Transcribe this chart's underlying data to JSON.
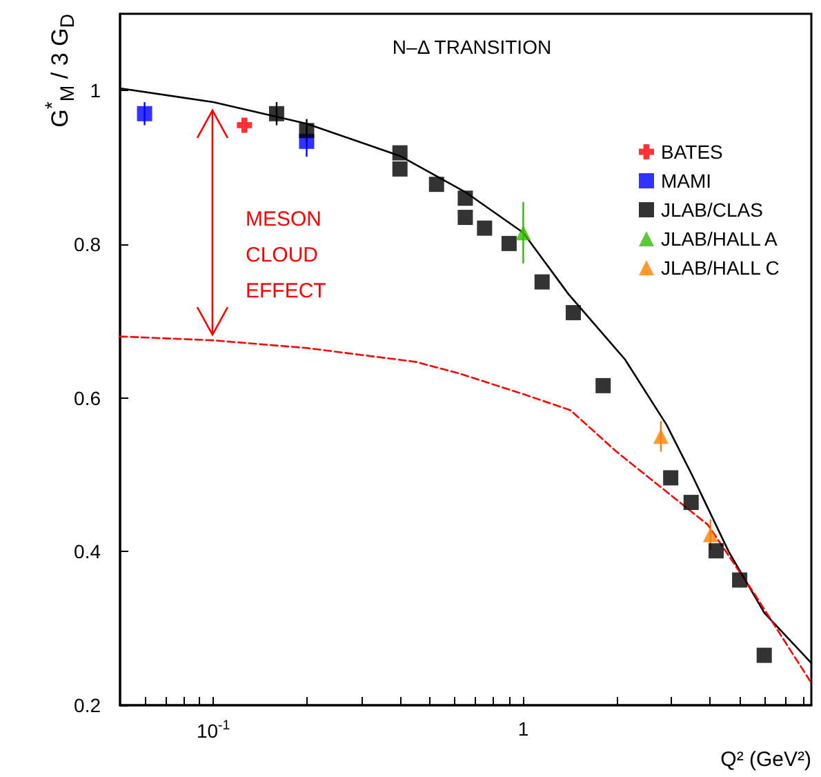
{
  "chart_data": {
    "type": "scatter",
    "title": "N–Δ TRANSITION",
    "xlabel": "Q² (GeV²)",
    "ylabel": "G$^{*}$$_{M}$ / 3 G$_{D}$",
    "annotations": [
      "MESON\nCLOUD\nEFFECT"
    ],
    "log": "x",
    "grid": false,
    "legend": "top right",
    "xlim": [
      0.05,
      8.5
    ],
    "ylim": [
      0.2,
      1.1
    ],
    "xticks": [
      {
        "value": 0.06,
        "label": null
      },
      {
        "value": 0.07,
        "label": null
      },
      {
        "value": 0.08,
        "label": null
      },
      {
        "value": 0.09,
        "label": null
      },
      {
        "value": 0.1,
        "label": "10$^{-1}$"
      },
      {
        "value": 0.2,
        "label": null
      },
      {
        "value": 0.3,
        "label": null
      },
      {
        "value": 0.4,
        "label": null
      },
      {
        "value": 0.5,
        "label": null
      },
      {
        "value": 0.6,
        "label": null
      },
      {
        "value": 0.7,
        "label": null
      },
      {
        "value": 0.8,
        "label": null
      },
      {
        "value": 0.9,
        "label": null
      },
      1,
      {
        "value": 2,
        "label": null
      },
      {
        "value": 3,
        "label": null
      },
      {
        "value": 4,
        "label": null
      },
      {
        "value": 5,
        "label": null
      },
      {
        "value": 6,
        "label": null
      },
      {
        "value": 7,
        "label": null
      },
      {
        "value": 8,
        "label": null
      }
    ],
    "yticks": [
      0.2,
      0.4,
      0.6,
      0.8,
      1
    ],
    "series": [
      {
        "type": "line",
        "color": "#000000",
        "marker": "none",
        "line_style": "solid",
        "x": [
          0.05,
          0.1,
          0.2,
          0.4,
          0.65,
          1,
          1.4,
          2.13,
          2.9,
          3.5,
          4.6,
          6,
          8.5
        ],
        "values": [
          1.003,
          0.985,
          0.957,
          0.915,
          0.868,
          0.815,
          0.735,
          0.65,
          0.565,
          0.5,
          0.4,
          0.32,
          0.255
        ]
      },
      {
        "type": "line",
        "color": "#ff0000",
        "marker": "none",
        "line_style": "dashed",
        "x": [
          0.05,
          0.1,
          0.2,
          0.45,
          0.62,
          1,
          1.42,
          2,
          3.94,
          5.57,
          8.5
        ],
        "values": [
          0.68,
          0.675,
          0.665,
          0.647,
          0.632,
          0.605,
          0.584,
          0.53,
          0.435,
          0.345,
          0.229
        ]
      },
      {
        "name": "BATES",
        "color": "#ff0000",
        "marker": "cross",
        "x": [
          0.126
        ],
        "values": [
          0.955
        ]
      },
      {
        "name": "MAMI",
        "color": "#0000ff",
        "marker": "square",
        "x": [
          0.06,
          0.2
        ],
        "values": [
          0.97,
          0.934
        ],
        "errors": [
          0.015,
          0.02
        ]
      },
      {
        "name": "JLAB/CLAS",
        "color": "#000000",
        "marker": "square",
        "x": [
          0.16,
          0.2,
          0.4,
          0.4,
          0.525,
          0.65,
          0.65,
          0.75,
          0.9,
          1.15,
          1.45,
          1.81,
          2.99,
          3.48,
          4.19,
          4.99,
          5.99
        ],
        "values": [
          0.97,
          0.948,
          0.919,
          0.898,
          0.878,
          0.86,
          0.835,
          0.821,
          0.801,
          0.751,
          0.711,
          0.616,
          0.496,
          0.464,
          0.401,
          0.363,
          0.265
        ],
        "errors": [
          0.015,
          0.015,
          null,
          null,
          null,
          null,
          null,
          null,
          null,
          null,
          null,
          null,
          null,
          null,
          null,
          null,
          null
        ]
      },
      {
        "name": "JLAB/HALL A",
        "color": "#33bb00",
        "marker": "triangle",
        "x": [
          1
        ],
        "values": [
          0.815
        ],
        "errors": [
          0.04
        ]
      },
      {
        "name": "JLAB/HALL C",
        "color": "#ff8000",
        "marker": "triangle",
        "x": [
          2.78,
          4.02
        ],
        "values": [
          0.55,
          0.422
        ],
        "errors": [
          0.02,
          0.02
        ]
      }
    ]
  }
}
